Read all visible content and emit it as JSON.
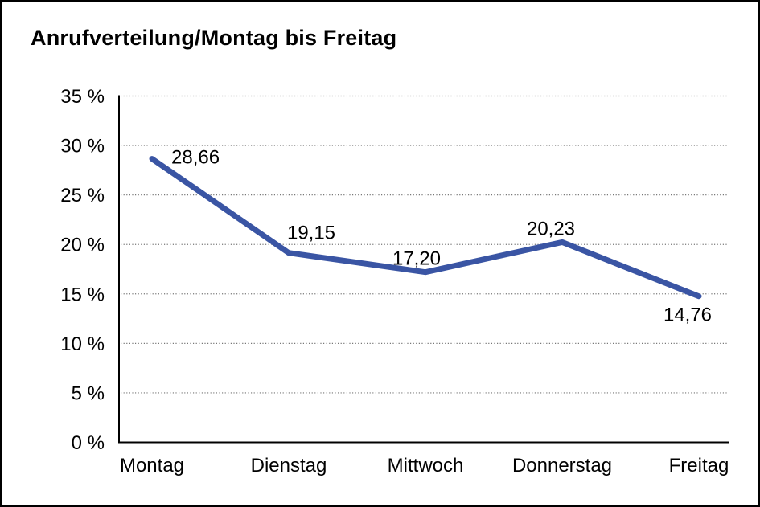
{
  "page": {
    "background": "#ffffff",
    "frame_border_color": "#000000"
  },
  "chart_data": {
    "type": "line",
    "title": "Anrufverteilung/Montag bis Freitag",
    "categories": [
      "Montag",
      "Dienstag",
      "Mittwoch",
      "Donnerstag",
      "Freitag"
    ],
    "values": [
      28.66,
      19.15,
      17.2,
      20.23,
      14.76
    ],
    "point_labels": [
      "28,66",
      "19,15",
      "17,20",
      "20,23",
      "14,76"
    ],
    "xlabel": "",
    "ylabel": "",
    "ylim": [
      0,
      35
    ],
    "ytick_step": 5,
    "ytick_labels": [
      "0 %",
      "5 %",
      "10 %",
      "15 %",
      "20 %",
      "25 %",
      "30 %",
      "35 %"
    ],
    "grid": "horizontal-dotted",
    "legend": "none",
    "line_color": "#3A55A4",
    "gridline_color": "#777777",
    "axis_color": "#000000",
    "text_color": "#000000"
  }
}
